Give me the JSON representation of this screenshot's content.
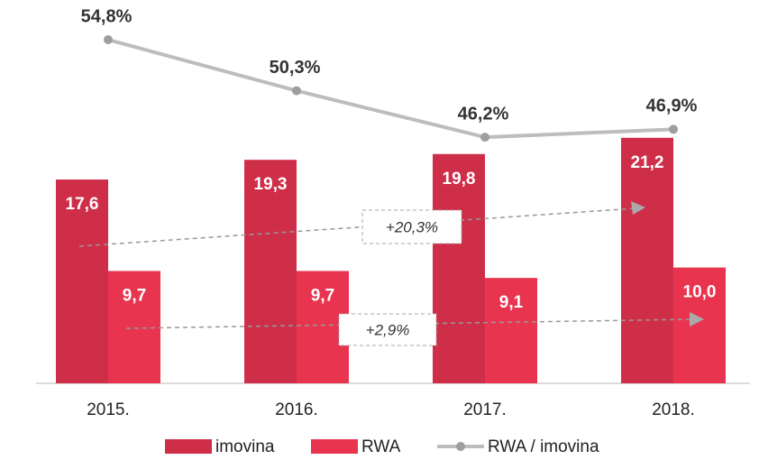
{
  "chart_data": {
    "type": "bar",
    "categories": [
      "2015.",
      "2016.",
      "2017.",
      "2018."
    ],
    "series": [
      {
        "name": "imovina",
        "color": "#cf2e48",
        "values": [
          17.6,
          19.3,
          19.8,
          21.2
        ],
        "value_labels": [
          "17,6",
          "19,3",
          "19,8",
          "21,2"
        ]
      },
      {
        "name": "RWA",
        "color": "#e8344f",
        "values": [
          9.7,
          9.7,
          9.1,
          10.0
        ],
        "value_labels": [
          "9,7",
          "9,7",
          "9,1",
          "10,0"
        ]
      },
      {
        "name": "RWA / imovina",
        "type": "line",
        "axis": "y2",
        "color": "#bdbdbd",
        "values": [
          54.8,
          50.3,
          46.2,
          46.9
        ],
        "value_labels": [
          "54,8%",
          "50,3%",
          "46,2%",
          "46,9%"
        ]
      }
    ],
    "ylim": [
      0,
      33.1
    ],
    "y2lim": [
      24.5,
      58.3
    ],
    "annotations": [
      "+20,3%",
      "+2,9%"
    ]
  }
}
